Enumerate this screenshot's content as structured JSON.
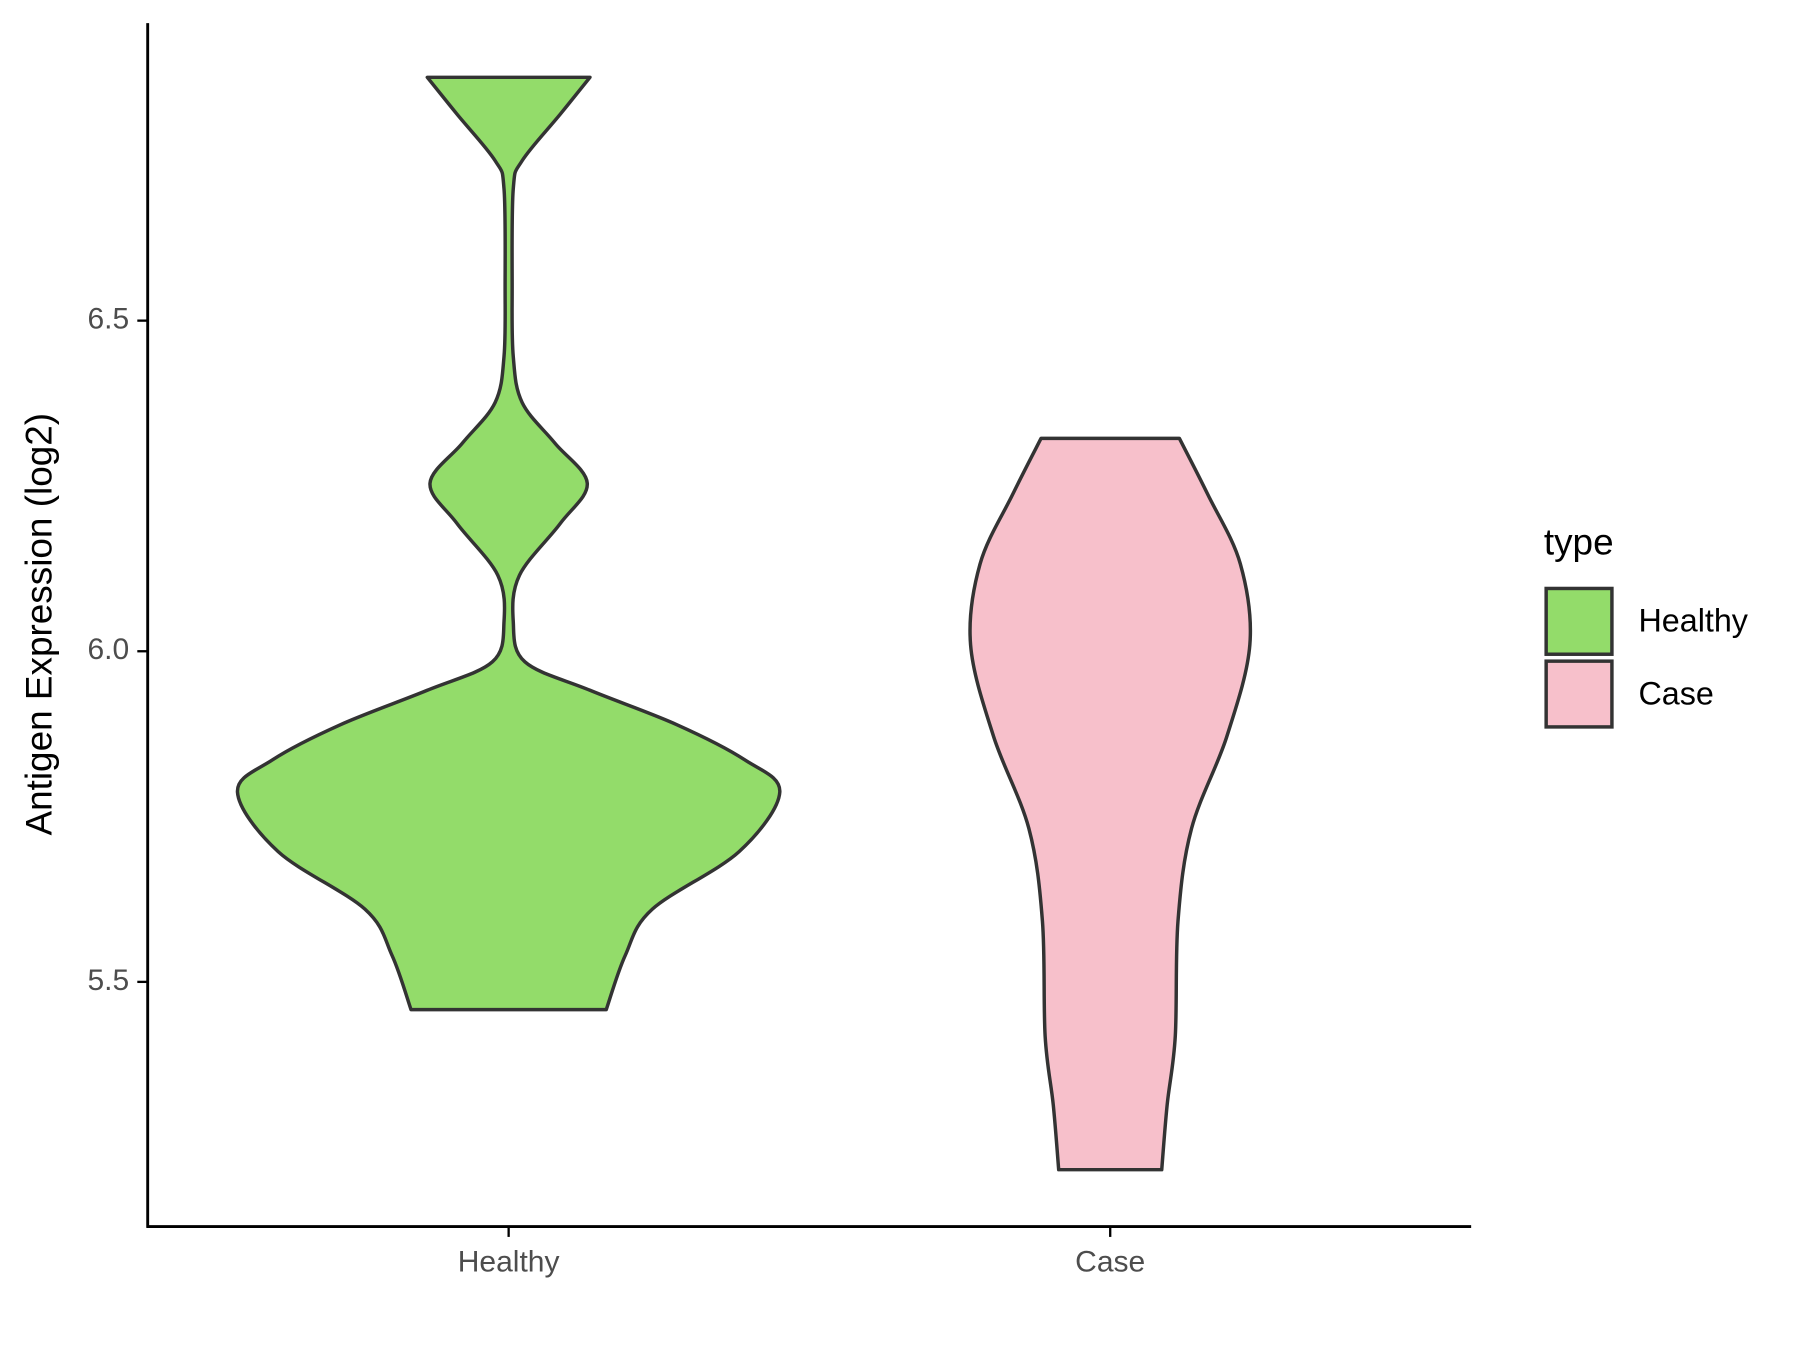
{
  "chart_data": {
    "type": "violin",
    "y_label": "Antigen Expression (log2)",
    "categories": [
      "Healthy",
      "Case"
    ],
    "legend_title": "type",
    "legend_position": "right",
    "ylim": [
      5.13,
      6.95
    ],
    "yticks": [
      5.5,
      {
        "value": 6,
        "label": "6.0"
      },
      6.5
    ],
    "series": [
      {
        "name": "Healthy",
        "color": "#93dc6a",
        "y": [
          6.868,
          6.812,
          6.742,
          6.699,
          6.551,
          6.446,
          6.376,
          6.315,
          6.254,
          6.193,
          6.115,
          6.045,
          5.984,
          5.941,
          5.889,
          5.836,
          5.787,
          5.697,
          5.61,
          5.54,
          5.458
        ],
        "density": [
          0.3,
          0.19,
          0.05,
          0.017,
          0.013,
          0.017,
          0.05,
          0.17,
          0.29,
          0.19,
          0.04,
          0.017,
          0.06,
          0.3,
          0.62,
          0.87,
          1.0,
          0.85,
          0.53,
          0.43,
          0.36
        ]
      },
      {
        "name": "Case",
        "color": "#f7c0cb",
        "y": [
          6.322,
          6.237,
          6.132,
          6.01,
          5.871,
          5.732,
          5.592,
          5.418,
          5.314,
          5.216
        ],
        "density": [
          0.255,
          0.36,
          0.48,
          0.515,
          0.43,
          0.3,
          0.25,
          0.24,
          0.21,
          0.19
        ]
      }
    ]
  }
}
